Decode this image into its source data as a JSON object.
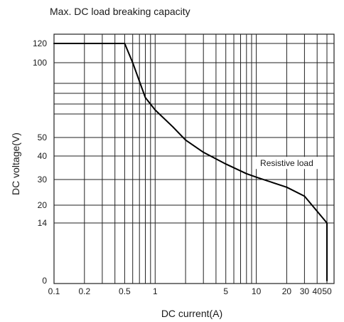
{
  "chart_data": {
    "type": "line",
    "title": "Max. DC load breaking capacity",
    "xlabel": "DC current(A)",
    "ylabel": "DC voltage(V)",
    "x_scale": "log",
    "y_scale": "custom",
    "xlim": [
      0.1,
      60
    ],
    "ylim": [
      0,
      130
    ],
    "x_major_ticks": [
      0.1,
      0.2,
      0.5,
      1,
      5,
      10,
      20,
      30,
      40,
      50
    ],
    "x_tick_labels": [
      "0.1",
      "0.2",
      "0.5",
      "1",
      "5",
      "10",
      "20",
      "30",
      "40",
      "50"
    ],
    "x_minor_ticks": [
      0.3,
      0.4,
      0.6,
      0.7,
      0.8,
      0.9,
      2,
      3,
      4,
      6,
      7,
      8,
      9
    ],
    "y_ticks": [
      0,
      14,
      20,
      30,
      40,
      50,
      100,
      120
    ],
    "y_tick_labels": [
      "0",
      "14",
      "20",
      "30",
      "40",
      "50",
      "100",
      "120"
    ],
    "y_extra_gridlines": [
      60,
      70,
      80,
      90
    ],
    "grid": true,
    "series": [
      {
        "x": [
          0.1,
          0.5,
          0.6,
          0.8,
          1,
          1.5,
          2,
          3,
          5,
          8,
          10,
          20,
          30,
          50,
          50
        ],
        "y": [
          120,
          120,
          100,
          76,
          64,
          54.5,
          48.6,
          42,
          36.6,
          32.5,
          31,
          27,
          23.5,
          14,
          0
        ]
      }
    ],
    "annotations": [
      {
        "text": "Resistive load",
        "x": 20,
        "y": 36
      }
    ]
  }
}
